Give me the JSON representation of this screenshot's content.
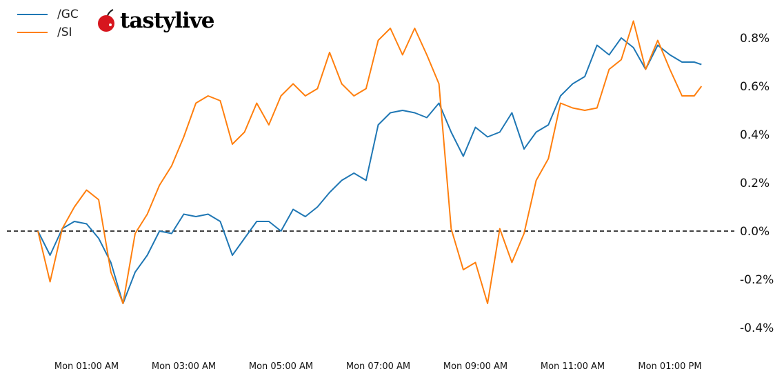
{
  "logo": {
    "text": "tastylive",
    "icon": "cherry-icon"
  },
  "chart_data": {
    "type": "line",
    "title": "",
    "xlabel": "",
    "ylabel": "",
    "x_tick_labels": [
      "Mon 01:00 AM",
      "Mon 03:00 AM",
      "Mon 05:00 AM",
      "Mon 07:00 AM",
      "Mon 09:00 AM",
      "Mon 11:00 AM",
      "Mon 01:00 PM"
    ],
    "x_tick_hours": [
      1,
      3,
      5,
      7,
      9,
      11,
      13
    ],
    "y_tick_labels": [
      "-0.4%",
      "-0.2%",
      "0.0%",
      "0.2%",
      "0.4%",
      "0.6%",
      "0.8%"
    ],
    "y_tick_values": [
      -0.4,
      -0.2,
      0.0,
      0.2,
      0.4,
      0.6,
      0.8
    ],
    "ylim": [
      -0.457,
      0.914
    ],
    "y_unit": "%",
    "grid": false,
    "reference_line": {
      "y": 0.0,
      "style": "dashed",
      "color": "#000000"
    },
    "legend_position": "top-left",
    "x": [
      "00:00",
      "00:15",
      "00:30",
      "00:45",
      "01:00",
      "01:15",
      "01:30",
      "01:45",
      "02:00",
      "02:15",
      "02:30",
      "02:45",
      "03:00",
      "03:15",
      "03:30",
      "03:45",
      "04:00",
      "04:15",
      "04:30",
      "04:45",
      "05:00",
      "05:15",
      "05:30",
      "05:45",
      "06:00",
      "06:15",
      "06:30",
      "06:45",
      "07:00",
      "07:15",
      "07:30",
      "07:45",
      "08:00",
      "08:15",
      "08:30",
      "08:45",
      "09:00",
      "09:15",
      "09:30",
      "09:45",
      "10:00",
      "10:15",
      "10:30",
      "10:45",
      "11:00",
      "11:15",
      "11:30",
      "11:45",
      "12:00",
      "12:15",
      "12:30",
      "12:45",
      "13:00",
      "13:15",
      "13:30",
      "13:39"
    ],
    "series": [
      {
        "name": "/GC",
        "color": "#1f77b4",
        "values": [
          0.0,
          -0.1,
          0.01,
          0.04,
          0.03,
          -0.03,
          -0.13,
          -0.3,
          -0.17,
          -0.1,
          0.0,
          -0.01,
          0.07,
          0.06,
          0.07,
          0.04,
          -0.1,
          -0.03,
          0.04,
          0.04,
          0.0,
          0.09,
          0.06,
          0.1,
          0.16,
          0.21,
          0.24,
          0.21,
          0.44,
          0.49,
          0.5,
          0.49,
          0.47,
          0.53,
          0.41,
          0.31,
          0.43,
          0.39,
          0.41,
          0.49,
          0.34,
          0.41,
          0.44,
          0.56,
          0.61,
          0.64,
          0.77,
          0.73,
          0.8,
          0.76,
          0.67,
          0.77,
          0.73,
          0.7,
          0.7,
          0.69
        ]
      },
      {
        "name": "/SI",
        "color": "#ff7f0e",
        "values": [
          0.0,
          -0.21,
          0.01,
          0.1,
          0.17,
          0.13,
          -0.17,
          -0.3,
          -0.01,
          0.07,
          0.19,
          0.27,
          0.39,
          0.53,
          0.56,
          0.54,
          0.36,
          0.41,
          0.53,
          0.44,
          0.56,
          0.61,
          0.56,
          0.59,
          0.74,
          0.61,
          0.56,
          0.59,
          0.79,
          0.84,
          0.73,
          0.84,
          0.73,
          0.61,
          0.01,
          -0.16,
          -0.13,
          -0.3,
          0.01,
          -0.13,
          -0.01,
          0.21,
          0.3,
          0.53,
          0.51,
          0.5,
          0.51,
          0.67,
          0.71,
          0.87,
          0.67,
          0.79,
          0.67,
          0.56,
          0.56,
          0.6
        ]
      }
    ]
  }
}
